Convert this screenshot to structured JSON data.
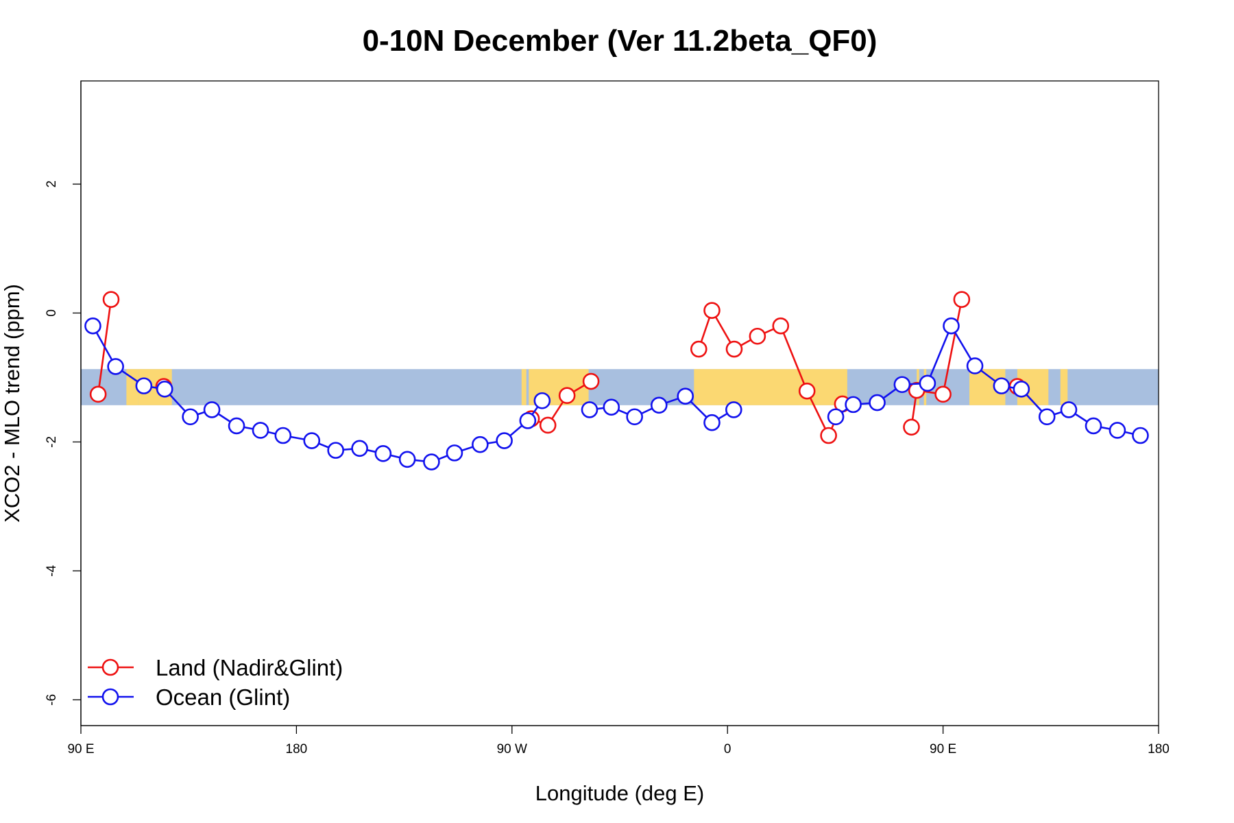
{
  "chart_data": {
    "type": "line",
    "title": "0-10N December (Ver 11.2beta_QF0)",
    "xlabel": "Longitude (deg E)",
    "ylabel": "XCO2 - MLO trend (ppm)",
    "xlim": [
      90,
      540
    ],
    "ylim": [
      -6.4,
      3.6
    ],
    "x_ticks": [
      {
        "value": 90,
        "label": "90 E"
      },
      {
        "value": 180,
        "label": "180"
      },
      {
        "value": 270,
        "label": "90 W"
      },
      {
        "value": 360,
        "label": "0"
      },
      {
        "value": 450,
        "label": "90 E"
      },
      {
        "value": 540,
        "label": "180"
      }
    ],
    "y_ticks": [
      {
        "value": 2,
        "label": "2"
      },
      {
        "value": 0,
        "label": "0"
      },
      {
        "value": -2,
        "label": "-2"
      },
      {
        "value": -4,
        "label": "-4"
      },
      {
        "value": -6,
        "label": "-6"
      }
    ],
    "band": {
      "ymin": -1.43,
      "ymax": -0.87,
      "color": "#a8bfdf",
      "land_color": "#fbd872"
    },
    "land_segments": [
      [
        109,
        114
      ],
      [
        114,
        127
      ],
      [
        124,
        128
      ],
      [
        274,
        276
      ],
      [
        277,
        302
      ],
      [
        346,
        410
      ],
      [
        439,
        440
      ],
      [
        442,
        443
      ],
      [
        461,
        476
      ],
      [
        481,
        494
      ],
      [
        499,
        502
      ]
    ],
    "series": [
      {
        "name": "Land (Nadir&Glint)",
        "color": "#ee1111",
        "segments": [
          [
            [
              97.2,
              -1.26
            ],
            [
              102.6,
              0.21
            ]
          ],
          [
            [
              124.6,
              -1.14
            ]
          ],
          [
            [
              278.1,
              -1.64
            ],
            [
              285,
              -1.74
            ],
            [
              293,
              -1.28
            ],
            [
              303,
              -1.06
            ]
          ],
          [
            [
              348,
              -0.56
            ],
            [
              353.5,
              0.04
            ],
            [
              362.8,
              -0.56
            ],
            [
              372.5,
              -0.36
            ],
            [
              382.2,
              -0.2
            ],
            [
              393.2,
              -1.21
            ],
            [
              402.2,
              -1.9
            ],
            [
              408,
              -1.41
            ]
          ],
          [
            [
              436.8,
              -1.77
            ],
            [
              439,
              -1.2
            ],
            [
              450,
              -1.26
            ],
            [
              457.8,
              0.21
            ]
          ],
          [
            [
              481,
              -1.14
            ]
          ]
        ]
      },
      {
        "name": "Ocean (Glint)",
        "color": "#1111ee",
        "segments": [
          [
            [
              95,
              -0.2
            ],
            [
              104.5,
              -0.83
            ],
            [
              116.3,
              -1.13
            ],
            [
              125,
              -1.18
            ],
            [
              135.7,
              -1.61
            ],
            [
              144.7,
              -1.5
            ],
            [
              155,
              -1.75
            ],
            [
              165,
              -1.82
            ],
            [
              174.4,
              -1.9
            ],
            [
              186.4,
              -1.98
            ],
            [
              196.4,
              -2.13
            ],
            [
              206.4,
              -2.1
            ],
            [
              216.2,
              -2.18
            ],
            [
              226.3,
              -2.27
            ],
            [
              236.4,
              -2.31
            ],
            [
              246,
              -2.17
            ],
            [
              256.7,
              -2.04
            ],
            [
              266.8,
              -1.98
            ],
            [
              276.6,
              -1.67
            ],
            [
              282.6,
              -1.36
            ]
          ],
          [
            [
              302.4,
              -1.5
            ],
            [
              311.5,
              -1.46
            ],
            [
              321.2,
              -1.61
            ],
            [
              331.4,
              -1.43
            ],
            [
              342.4,
              -1.29
            ],
            [
              353.5,
              -1.7
            ],
            [
              362.6,
              -1.5
            ]
          ],
          [
            [
              405.2,
              -1.61
            ],
            [
              412.5,
              -1.42
            ],
            [
              422.5,
              -1.39
            ],
            [
              432.9,
              -1.11
            ],
            [
              443.5,
              -1.09
            ],
            [
              453.4,
              -0.2
            ],
            [
              463.3,
              -0.82
            ],
            [
              474.4,
              -1.13
            ],
            [
              482.7,
              -1.18
            ],
            [
              493.4,
              -1.61
            ],
            [
              502.5,
              -1.5
            ],
            [
              512.8,
              -1.75
            ],
            [
              522.8,
              -1.82
            ],
            [
              532.4,
              -1.9
            ]
          ]
        ]
      }
    ],
    "legend": {
      "position": "bottom-left"
    }
  }
}
